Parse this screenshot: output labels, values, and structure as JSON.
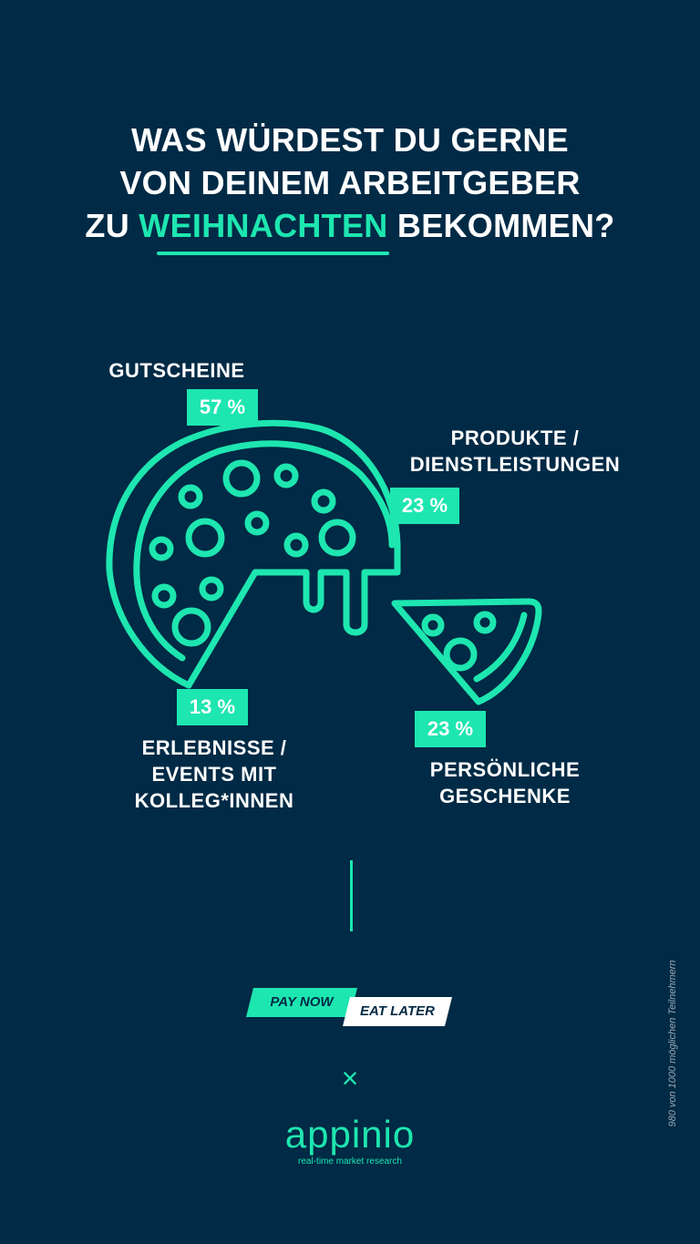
{
  "title": {
    "line1": "WAS WÜRDEST DU GERNE",
    "line2": "VON DEINEM ARBEITGEBER",
    "line3_pre": "ZU ",
    "line3_accent": "WEIHNACHTEN",
    "line3_post": " BEKOMMEN?"
  },
  "chart_data": {
    "type": "pie",
    "categories": [
      "GUTSCHEINE",
      "PRODUKTE /\nDIENSTLEISTUNGEN",
      "ERLEBNISSE /\nEVENTS MIT\nKOLLEG*INNEN",
      "PERSÖNLICHE\nGESCHENKE"
    ],
    "values": [
      57,
      23,
      13,
      23
    ],
    "value_labels": [
      "57 %",
      "23 %",
      "13 %",
      "23 %"
    ]
  },
  "branding": {
    "pay_now": "PAY NOW",
    "eat_later": "EAT LATER",
    "times": "×",
    "logo": "appinio",
    "tagline": "real-time market research"
  },
  "source_note": "980 von 1000 möglichen Teilnehmern",
  "colors": {
    "background": "#002a45",
    "accent": "#1ee6b0",
    "text": "#ffffff"
  }
}
